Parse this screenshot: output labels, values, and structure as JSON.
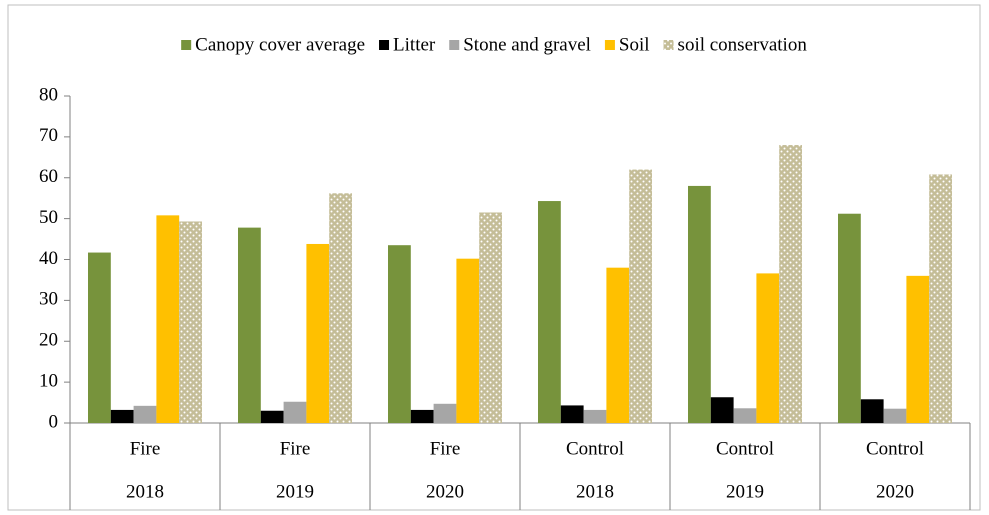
{
  "chart_data": {
    "type": "bar",
    "categories": [
      [
        "Fire",
        "2018"
      ],
      [
        "Fire",
        "2019"
      ],
      [
        "Fire",
        "2020"
      ],
      [
        "Control",
        "2018"
      ],
      [
        "Control",
        "2019"
      ],
      [
        "Control",
        "2020"
      ]
    ],
    "series": [
      {
        "name": "Canopy cover average",
        "color": "#77933c",
        "values": [
          41.7,
          47.8,
          43.5,
          54.3,
          58.0,
          51.2
        ]
      },
      {
        "name": "Litter",
        "color": "#000000",
        "values": [
          3.2,
          3.0,
          3.2,
          4.3,
          6.3,
          5.8
        ]
      },
      {
        "name": "Stone and gravel",
        "color": "#a6a6a6",
        "values": [
          4.2,
          5.2,
          4.7,
          3.2,
          3.6,
          3.5
        ]
      },
      {
        "name": "Soil",
        "color": "#ffc000",
        "values": [
          50.8,
          43.8,
          40.2,
          38.0,
          36.6,
          36.0
        ]
      },
      {
        "name": "soil conservation",
        "color": "#c4bd97",
        "pattern": "dots",
        "values": [
          49.3,
          56.2,
          51.5,
          62.0,
          68.0,
          60.8
        ]
      }
    ],
    "ylim": [
      0,
      80
    ],
    "yticks": [
      0,
      10,
      20,
      30,
      40,
      50,
      60,
      70,
      80
    ],
    "legend": "top",
    "grid": false
  }
}
